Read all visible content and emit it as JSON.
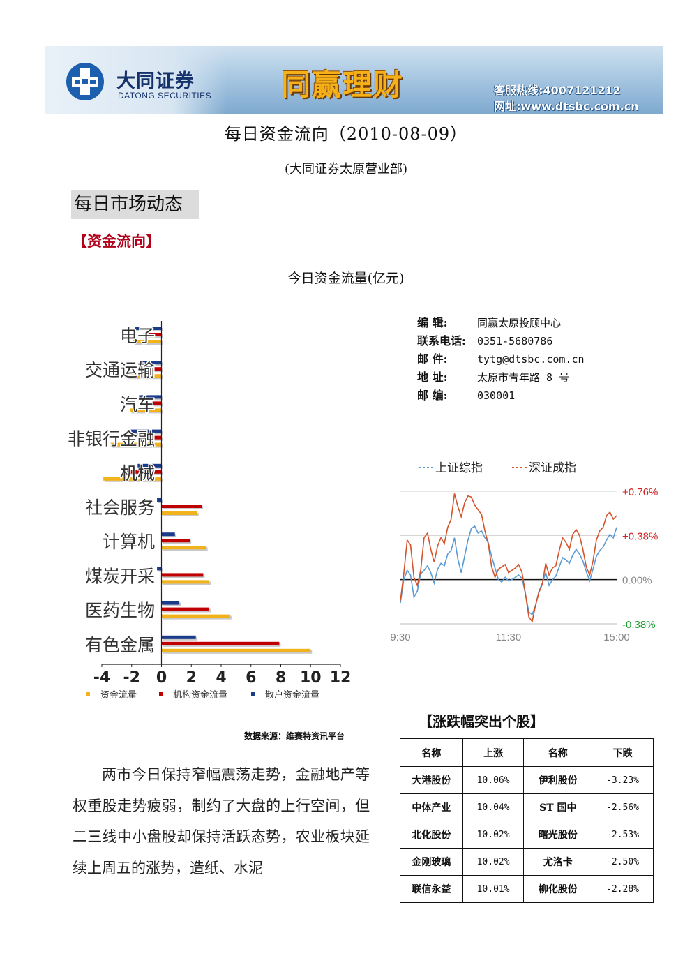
{
  "banner": {
    "brand_cn": "大同证券",
    "brand_en": "DATONG SECURITIES",
    "slogan": "同赢理财",
    "hotline": "客服热线:4007121212",
    "website": "网址:www.dtsbc.com.cn"
  },
  "title": "每日资金流向（2010-08-09）",
  "subtitle": "(大同证券太原营业部)",
  "section_heading": "每日市场动态",
  "sub_heading": "【资金流向】",
  "chart_caption": "今日资金流量(亿元)",
  "chart_data": [
    {
      "type": "bar",
      "orientation": "horizontal",
      "categories": [
        "电子",
        "交通运输",
        "汽车",
        "非银行金融",
        "机械",
        "社会服务",
        "计算机",
        "煤炭开采",
        "医药生物",
        "有色金属"
      ],
      "series": [
        {
          "name": "资金流量",
          "color": "#f2b21b",
          "values": [
            -1.9,
            -2.3,
            -2.1,
            -3.4,
            -3.9,
            2.4,
            3.0,
            3.2,
            4.6,
            10.0
          ]
        },
        {
          "name": "机构资金流量",
          "color": "#c00000",
          "values": [
            -1.2,
            -0.8,
            -0.6,
            -1.3,
            -2.3,
            2.7,
            1.9,
            2.8,
            3.2,
            7.9
          ]
        },
        {
          "name": "散户资金流量",
          "color": "#1a3a8a",
          "values": [
            -1.8,
            -1.4,
            -1.5,
            -2.2,
            -1.6,
            -0.3,
            0.9,
            -0.3,
            1.2,
            2.3
          ]
        }
      ],
      "xlim": [
        -4,
        12
      ],
      "xticks": [
        "-4",
        "-2",
        "0",
        "2",
        "4",
        "6",
        "8",
        "10",
        "12"
      ],
      "legend_position": "bottom"
    },
    {
      "type": "line",
      "x_ticks": [
        "9:30",
        "11:30",
        "15:00"
      ],
      "y_ticks_right": [
        "+0.76%",
        "+0.38%",
        "0.00%",
        "-0.38%"
      ],
      "ylim": [
        -0.38,
        0.76
      ],
      "grid": true,
      "legend_position": "top",
      "series": [
        {
          "name": "上证综指",
          "color": "#5b9bd5",
          "values": [
            -0.2,
            0.0,
            0.08,
            0.04,
            -0.15,
            -0.1,
            0.05,
            0.08,
            0.12,
            0.06,
            -0.03,
            0.09,
            0.14,
            0.12,
            0.22,
            0.25,
            0.36,
            0.18,
            0.06,
            0.2,
            0.34,
            0.44,
            0.46,
            0.4,
            0.42,
            0.36,
            0.32,
            0.2,
            0.1,
            0.0,
            -0.02,
            0.02,
            -0.01,
            0.0,
            0.02,
            0.04,
            0.01,
            -0.12,
            -0.28,
            -0.3,
            -0.22,
            -0.1,
            -0.03,
            0.06,
            -0.05,
            0.0,
            0.03,
            0.11,
            0.19,
            0.17,
            0.14,
            0.21,
            0.26,
            0.22,
            0.16,
            0.07,
            -0.01,
            0.09,
            0.2,
            0.25,
            0.28,
            0.34,
            0.39,
            0.36,
            0.45
          ]
        },
        {
          "name": "深证成指",
          "color": "#d4532a",
          "values": [
            -0.18,
            0.05,
            0.34,
            0.3,
            0.02,
            -0.05,
            0.08,
            0.36,
            0.4,
            0.26,
            0.15,
            0.29,
            0.36,
            0.31,
            0.45,
            0.52,
            0.74,
            0.63,
            0.54,
            0.66,
            0.72,
            0.71,
            0.64,
            0.6,
            0.56,
            0.42,
            0.31,
            0.11,
            0.02,
            0.09,
            0.11,
            0.13,
            0.06,
            0.08,
            0.1,
            0.13,
            0.06,
            -0.12,
            -0.32,
            -0.36,
            -0.22,
            -0.11,
            -0.04,
            0.14,
            0.04,
            0.1,
            0.12,
            0.25,
            0.36,
            0.32,
            0.26,
            0.39,
            0.43,
            0.38,
            0.26,
            0.11,
            0.04,
            0.16,
            0.34,
            0.42,
            0.45,
            0.55,
            0.58,
            0.52,
            0.55
          ]
        }
      ]
    }
  ],
  "contact": [
    {
      "label": "编    辑:",
      "value": "同赢太原投顾中心"
    },
    {
      "label": "联系电话:",
      "value": "0351-5680786"
    },
    {
      "label": "邮    件:",
      "value": "tytg@dtsbc.com.cn"
    },
    {
      "label": "地    址:",
      "value": "太原市青年路 8 号"
    },
    {
      "label": "邮    编:",
      "value": "030001"
    }
  ],
  "source": "数据来源：维赛特资讯平台",
  "body_paragraph": "两市今日保持窄幅震荡走势，金融地产等权重股走势疲弱，制约了大盘的上行空间，但二三线中小盘股却保持活跃态势，农业板块延续上周五的涨势，造纸、水泥",
  "movers": {
    "title": "【涨跌幅突出个股】",
    "headers": [
      "名称",
      "上涨",
      "名称",
      "下跌"
    ],
    "rows": [
      [
        "大港股份",
        "10.06%",
        "伊利股份",
        "-3.23%"
      ],
      [
        "中体产业",
        "10.04%",
        "ST 国中",
        "-2.56%"
      ],
      [
        "北化股份",
        "10.02%",
        "曙光股份",
        "-2.53%"
      ],
      [
        "金刚玻璃",
        "10.02%",
        "尤洛卡",
        "-2.50%"
      ],
      [
        "联信永益",
        "10.01%",
        "柳化股份",
        "-2.28%"
      ]
    ]
  }
}
